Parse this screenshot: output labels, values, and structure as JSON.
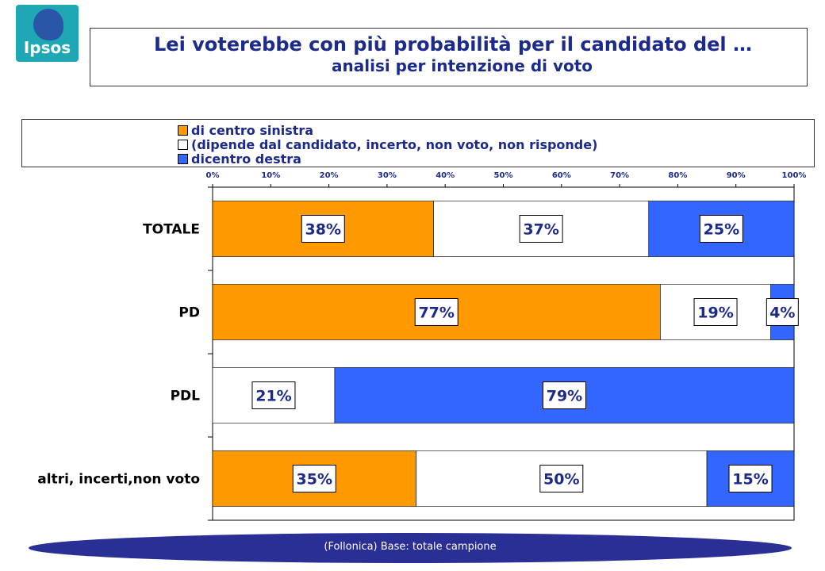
{
  "logo": {
    "text": "Ipsos",
    "color": "#1fa7b5"
  },
  "header": {
    "title": "Lei  voterebbe con più probabilità per il candidato del …",
    "subtitle": "analisi per intenzione di voto"
  },
  "footer": {
    "text": "(Follonica) Base: totale campione"
  },
  "chart_data": {
    "type": "bar",
    "orientation": "horizontal",
    "stacked": true,
    "categories": [
      "TOTALE",
      "PD",
      "PDL",
      "altri, incerti,non voto"
    ],
    "x_ticks": [
      "0%",
      "10%",
      "20%",
      "30%",
      "40%",
      "50%",
      "60%",
      "70%",
      "80%",
      "90%",
      "100%"
    ],
    "xlim": [
      0,
      100
    ],
    "legend_position": "top",
    "series": [
      {
        "name": "di centro sinistra",
        "color": "#ff9900",
        "values": [
          38,
          77,
          0,
          35
        ],
        "labels": [
          "38%",
          "77%",
          "",
          "35%"
        ]
      },
      {
        "name": "(dipende dal candidato, incerto, non voto, non risponde)",
        "color": "#ffffff",
        "values": [
          37,
          19,
          21,
          50
        ],
        "labels": [
          "37%",
          "19%",
          "21%",
          "50%"
        ]
      },
      {
        "name": "dicentro destra",
        "color": "#3366ff",
        "values": [
          25,
          4,
          79,
          15
        ],
        "labels": [
          "25%",
          "4%",
          "79%",
          "15%"
        ]
      }
    ]
  }
}
